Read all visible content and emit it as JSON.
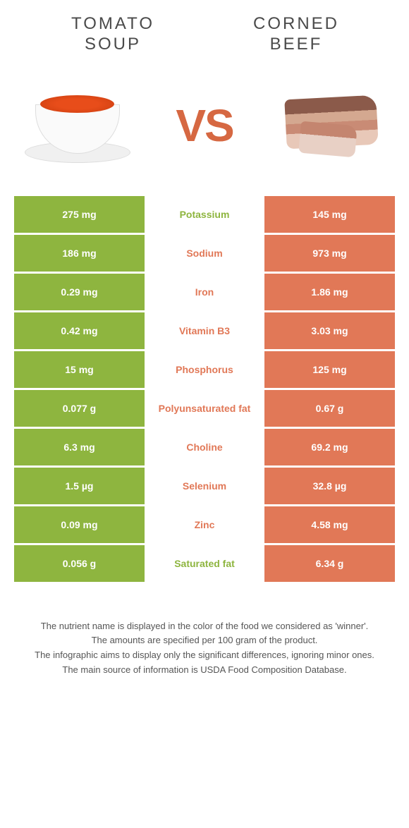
{
  "food_left": {
    "title_line1": "TOMATO",
    "title_line2": "SOUP"
  },
  "food_right": {
    "title_line1": "CORNED",
    "title_line2": "BEEF"
  },
  "vs": "VS",
  "colors": {
    "left_bg": "#8eb53f",
    "right_bg": "#e17857",
    "left_text": "#8eb53f",
    "right_text": "#e17857",
    "vs_color": "#d66842"
  },
  "rows": [
    {
      "left": "275 mg",
      "label": "Potassium",
      "right": "145 mg",
      "winner": "left"
    },
    {
      "left": "186 mg",
      "label": "Sodium",
      "right": "973 mg",
      "winner": "right"
    },
    {
      "left": "0.29 mg",
      "label": "Iron",
      "right": "1.86 mg",
      "winner": "right"
    },
    {
      "left": "0.42 mg",
      "label": "Vitamin B3",
      "right": "3.03 mg",
      "winner": "right"
    },
    {
      "left": "15 mg",
      "label": "Phosphorus",
      "right": "125 mg",
      "winner": "right"
    },
    {
      "left": "0.077 g",
      "label": "Polyunsaturated fat",
      "right": "0.67 g",
      "winner": "right"
    },
    {
      "left": "6.3 mg",
      "label": "Choline",
      "right": "69.2 mg",
      "winner": "right"
    },
    {
      "left": "1.5 µg",
      "label": "Selenium",
      "right": "32.8 µg",
      "winner": "right"
    },
    {
      "left": "0.09 mg",
      "label": "Zinc",
      "right": "4.58 mg",
      "winner": "right"
    },
    {
      "left": "0.056 g",
      "label": "Saturated fat",
      "right": "6.34 g",
      "winner": "left"
    }
  ],
  "footer": {
    "line1": "The nutrient name is displayed in the color of the food we considered as 'winner'.",
    "line2": "The amounts are specified per 100 gram of the product.",
    "line3": "The infographic aims to display only the significant differences, ignoring minor ones.",
    "line4": "The main source of information is USDA Food Composition Database."
  }
}
